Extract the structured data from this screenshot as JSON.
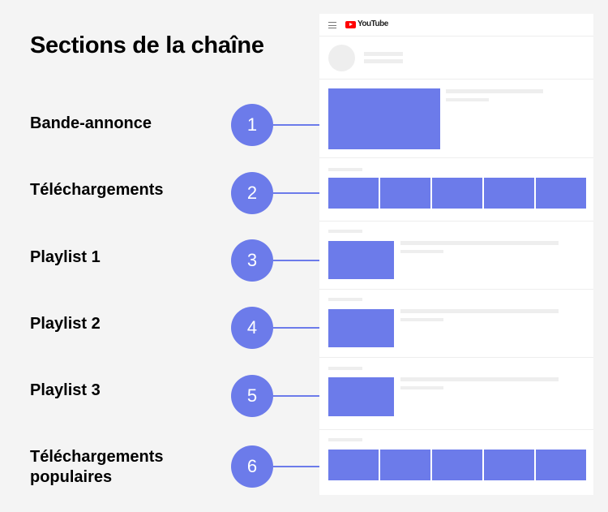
{
  "title": "Sections de la chaîne",
  "brand": "YouTube",
  "sections": [
    {
      "number": "1",
      "label": "Bande-annonce"
    },
    {
      "number": "2",
      "label": "Téléchargements"
    },
    {
      "number": "3",
      "label": "Playlist 1"
    },
    {
      "number": "4",
      "label": "Playlist 2"
    },
    {
      "number": "5",
      "label": "Playlist 3"
    },
    {
      "number": "6",
      "label_line1": "Téléchargements",
      "label_line2": "populaires"
    }
  ],
  "colors": {
    "accent": "#6c7bea",
    "background": "#f4f4f4",
    "placeholder": "#eeeeee",
    "logo": "#ff0000"
  }
}
